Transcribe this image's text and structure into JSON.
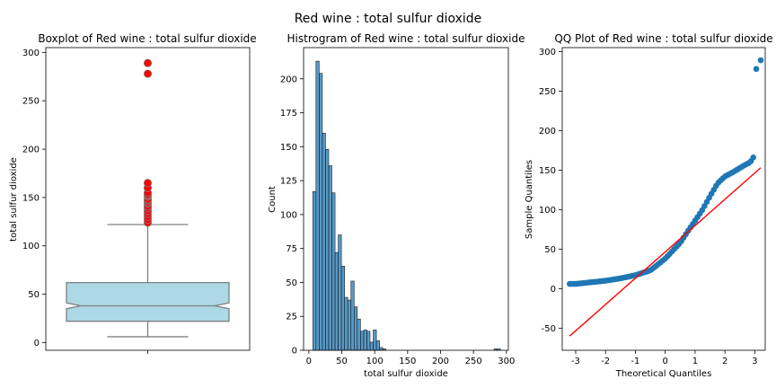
{
  "figure": {
    "title": "Red wine : total sulfur dioxide"
  },
  "chart_data": [
    {
      "type": "box",
      "title": "Boxplot of Red wine : total sulfur dioxide",
      "xlabel": "",
      "ylabel": "total sulfur dioxide",
      "ylim": [
        -8,
        305
      ],
      "yticks": [
        0,
        50,
        100,
        150,
        200,
        250,
        300
      ],
      "box": {
        "min_whisker": 6,
        "q1": 22,
        "median": 38,
        "q3": 62,
        "max_whisker": 122,
        "notch_low": 35,
        "notch_high": 41,
        "fill": "#add8e6",
        "edge": "#808080"
      },
      "outliers": [
        124,
        127,
        130,
        133,
        136,
        139,
        141,
        144,
        145,
        147,
        148,
        151,
        152,
        153,
        155,
        160,
        165,
        278,
        289
      ],
      "outlier_color": "#ff0000"
    },
    {
      "type": "bar",
      "title": "Histrogram of Red wine : total sulfur dioxide",
      "xlabel": "total sulfur dioxide",
      "ylabel": "Count",
      "xlim": [
        -8,
        303
      ],
      "ylim": [
        0,
        223
      ],
      "xticks": [
        0,
        50,
        100,
        150,
        200,
        250,
        300
      ],
      "yticks": [
        0,
        25,
        50,
        75,
        100,
        125,
        150,
        175,
        200
      ],
      "bin_start": 6,
      "bin_width": 4.83,
      "values": [
        117,
        213,
        204,
        160,
        148,
        136,
        116,
        72,
        85,
        62,
        39,
        37,
        51,
        32,
        23,
        14,
        15,
        14,
        6,
        15,
        7,
        2,
        1,
        0,
        0,
        0,
        0,
        0,
        0,
        0,
        0,
        0,
        0,
        0,
        0,
        0,
        0,
        0,
        0,
        0,
        0,
        0,
        0,
        0,
        0,
        0,
        0,
        0,
        0,
        0,
        0,
        0,
        0,
        0,
        0,
        0,
        0,
        1,
        1
      ],
      "color": "#1f77b4"
    },
    {
      "type": "scatter",
      "title": "QQ Plot of Red wine : total sulfur dioxide",
      "xlabel": "Theoretical Quantiles",
      "ylabel": "Sample Quantiles",
      "xlim": [
        -3.45,
        3.35
      ],
      "ylim": [
        -78,
        305
      ],
      "xticks": [
        -3,
        -2,
        -1,
        0,
        1,
        2,
        3
      ],
      "yticks": [
        -50,
        0,
        50,
        100,
        150,
        200,
        250,
        300
      ],
      "quantile_curve": [
        [
          -3.2,
          6
        ],
        [
          -3.0,
          6
        ],
        [
          -2.5,
          8
        ],
        [
          -2.0,
          10
        ],
        [
          -1.5,
          13
        ],
        [
          -1.0,
          17
        ],
        [
          -0.5,
          23
        ],
        [
          0.0,
          38
        ],
        [
          0.5,
          58
        ],
        [
          0.8,
          75
        ],
        [
          1.0,
          86
        ],
        [
          1.25,
          100
        ],
        [
          1.5,
          117
        ],
        [
          1.75,
          133
        ],
        [
          2.0,
          142
        ],
        [
          2.3,
          148
        ],
        [
          2.6,
          155
        ],
        [
          2.85,
          160
        ],
        [
          2.95,
          166
        ]
      ],
      "extra_points": [
        [
          3.05,
          278
        ],
        [
          3.2,
          289
        ]
      ],
      "reference_line": [
        [
          -3.2,
          -60
        ],
        [
          3.2,
          153
        ]
      ],
      "point_color": "#1f77b4",
      "line_color": "#ff0000"
    }
  ]
}
